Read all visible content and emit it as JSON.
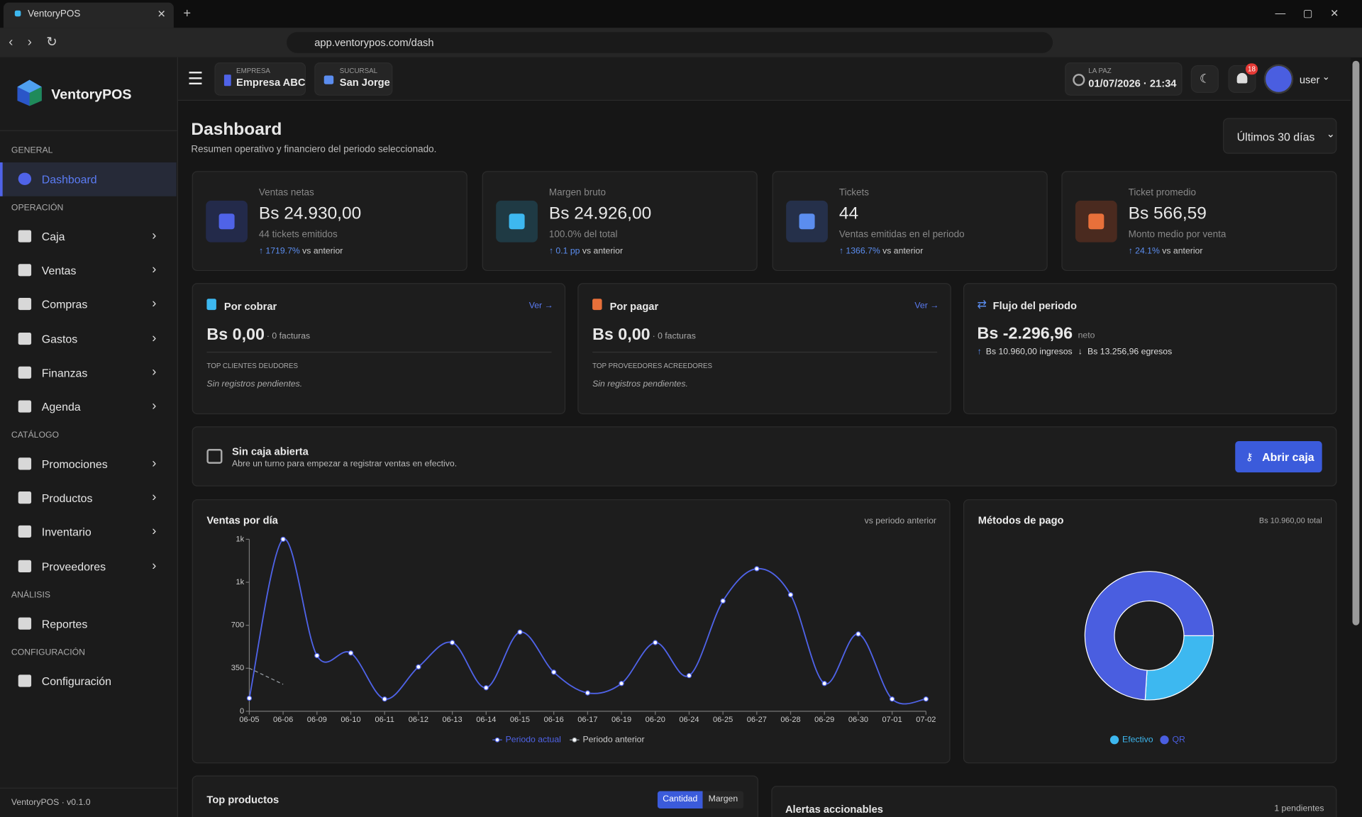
{
  "browser": {
    "tab_title": "VentoryPOS",
    "url": "app.ventorypos.com/dash"
  },
  "sidebar": {
    "brand": "VentoryPOS",
    "sections": [
      {
        "title": "GENERAL",
        "items": [
          "Dashboard"
        ]
      },
      {
        "title": "OPERACIÓN",
        "items": [
          "Caja",
          "Ventas",
          "Compras",
          "Gastos",
          "Finanzas",
          "Agenda"
        ]
      },
      {
        "title": "CATÁLOGO",
        "items": [
          "Promociones",
          "Productos",
          "Inventario",
          "Proveedores"
        ]
      },
      {
        "title": "ANÁLISIS",
        "items": [
          "Reportes"
        ]
      },
      {
        "title": "CONFIGURACIÓN",
        "items": [
          "Configuración"
        ]
      }
    ],
    "version": "VentoryPOS · v0.1.0"
  },
  "topbar": {
    "empresa_label": "EMPRESA",
    "empresa": "Empresa ABC",
    "sucursal_label": "SUCURSAL",
    "sucursal": "San Jorge",
    "location": "LA PAZ",
    "datetime": "01/07/2026 · 21:34",
    "notifications": 18,
    "user": "user"
  },
  "header": {
    "title": "Dashboard",
    "subtitle": "Resumen operativo y financiero del periodo seleccionado.",
    "period": "Últimos 30 días"
  },
  "kpis": [
    {
      "label": "Ventas netas",
      "value": "Bs 24.930,00",
      "sub": "44 tickets emitidos",
      "change": "1719.7%",
      "suffix": "vs anterior"
    },
    {
      "label": "Margen bruto",
      "value": "Bs 24.926,00",
      "sub": "100.0% del total",
      "change": "0.1 pp",
      "suffix": "vs anterior"
    },
    {
      "label": "Tickets",
      "value": "44",
      "sub": "Ventas emitidas en el periodo",
      "change": "1366.7%",
      "suffix": "vs anterior"
    },
    {
      "label": "Ticket promedio",
      "value": "Bs 566,59",
      "sub": "Monto medio por venta",
      "change": "24.1%",
      "suffix": "vs anterior"
    }
  ],
  "balances": [
    {
      "title": "Por cobrar",
      "link": "Ver →",
      "amount": "Bs 0,00",
      "count": "· 0 facturas",
      "list_title": "TOP CLIENTES DEUDORES",
      "empty": "Sin registros pendientes."
    },
    {
      "title": "Por pagar",
      "link": "Ver →",
      "amount": "Bs 0,00",
      "count": "· 0 facturas",
      "list_title": "TOP PROVEEDORES ACREEDORES",
      "empty": "Sin registros pendientes."
    }
  ],
  "flow": {
    "title": "Flujo del periodo",
    "amount": "Bs -2.296,96",
    "label": "neto",
    "income": "Bs 10.960,00 ingresos",
    "expense": "Bs 13.256,96 egresos"
  },
  "cash_banner": {
    "title": "Sin caja abierta",
    "text": "Abre un turno para empezar a registrar ventas en efectivo.",
    "button": "Abrir caja"
  },
  "chart_data": [
    {
      "type": "line",
      "title": "Ventas por día",
      "subtitle": "vs periodo anterior",
      "categories": [
        "06-05",
        "06-06",
        "06-09",
        "06-10",
        "06-11",
        "06-12",
        "06-13",
        "06-14",
        "06-15",
        "06-16",
        "06-17",
        "06-19",
        "06-20",
        "06-24",
        "06-25",
        "06-27",
        "06-28",
        "06-29",
        "06-30",
        "07-01",
        "07-02"
      ],
      "series": [
        {
          "name": "Periodo actual",
          "color": "#4f63e8",
          "values": [
            106,
            1400,
            453,
            474,
            99,
            361,
            559,
            191,
            644,
            318,
            149,
            226,
            559,
            290,
            898,
            1160,
            948,
            226,
            629,
            99,
            99
          ]
        },
        {
          "name": "Periodo anterior",
          "color": "#9aa0a6",
          "values": [
            350,
            219,
            null,
            null,
            null,
            null,
            null,
            null,
            null,
            null,
            null,
            null,
            null,
            null,
            null,
            null,
            null,
            null,
            null,
            null,
            null
          ]
        }
      ],
      "ylim": [
        0,
        1400
      ],
      "yticks": [
        0,
        350,
        700,
        {
          "value": 1050,
          "label": "1k"
        },
        {
          "value": 1400,
          "label": "1k"
        }
      ]
    },
    {
      "type": "pie",
      "title": "Métodos de pago",
      "subtitle": "Bs 10.960,00 total",
      "categories": [
        "Efectivo",
        "QR"
      ],
      "values": [
        26,
        74
      ],
      "colors": [
        "#3db8f0",
        "#4a5ee0"
      ],
      "donut": true
    }
  ],
  "top_products": {
    "title": "Top productos",
    "tabs": [
      "Cantidad",
      "Margen"
    ]
  },
  "alerts": {
    "title": "Alertas accionables",
    "count": "1 pendientes"
  }
}
